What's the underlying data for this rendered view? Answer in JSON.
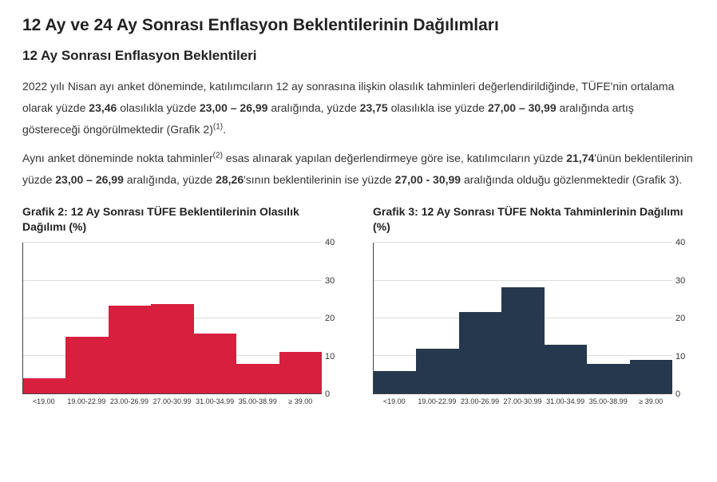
{
  "title_main": "12 Ay ve 24 Ay Sonrası Enflasyon Beklentilerinin Dağılımları",
  "title_section": "12 Ay Sonrası Enflasyon Beklentileri",
  "para1": {
    "t1": "2022 yılı Nisan ayı anket döneminde, katılımcıların 12 ay sonrasına ilişkin olasılık tahminleri değerlendirildiğinde, TÜFE'nin ortalama olarak yüzde ",
    "b1": "23,46",
    "t2": " olasılıkla yüzde ",
    "b2": "23,00 – 26,99",
    "t3": " aralığında, yüzde ",
    "b3": "23,75",
    "t4": " olasılıkla ise yüzde ",
    "b4": "27,00 – 30,99",
    "t5": " aralığında artış göstereceği öngörülmektedir (Grafik 2)",
    "fnote1": "(1)",
    "t6": "."
  },
  "para2": {
    "t1": "Aynı anket döneminde nokta tahminler",
    "fnote2": "(2)",
    "t2": " esas alınarak yapılan değerlendirmeye göre ise, katılımcıların yüzde ",
    "b1": "21,74",
    "t3": "'ünün beklentilerinin yüzde ",
    "b2": "23,00 – 26,99",
    "t4": " aralığında, yüzde ",
    "b3": "28,26",
    "t5": "'sının beklentilerinin ise yüzde ",
    "b4": "27,00 - 30,99",
    "t6": " aralığında olduğu gözlenmektedir (Grafik 3)."
  },
  "chart2": {
    "title": "Grafik 2: 12 Ay Sonrası TÜFE Beklentilerinin Olasılık Dağılımı (%)",
    "type": "bar",
    "bar_color": "#d81f3e",
    "background_color": "#ffffff",
    "grid_color": "#dddddd",
    "axis_color": "#444444",
    "ylim": [
      0,
      40
    ],
    "ytick_step": 10,
    "yticks": [
      0,
      10,
      20,
      30,
      40
    ],
    "categories": [
      "<19.00",
      "19.00-22.99",
      "23.00-26.99",
      "27.00-30.99",
      "31.00-34.99",
      "35.00-38.99",
      "≥ 39.00"
    ],
    "values": [
      4,
      15,
      23.46,
      23.75,
      16,
      8,
      11
    ]
  },
  "chart3": {
    "title": "Grafik 3: 12 Ay Sonrası TÜFE Nokta Tahminlerinin Dağılımı (%)",
    "type": "bar",
    "bar_color": "#25384d",
    "background_color": "#ffffff",
    "grid_color": "#dddddd",
    "axis_color": "#444444",
    "ylim": [
      0,
      40
    ],
    "ytick_step": 10,
    "yticks": [
      0,
      10,
      20,
      30,
      40
    ],
    "categories": [
      "<19.00",
      "19.00-22.99",
      "23.00-26.99",
      "27.00-30.99",
      "31.00-34.99",
      "35.00-38.99",
      "≥ 39.00"
    ],
    "values": [
      6,
      12,
      21.74,
      28.26,
      13,
      8,
      9
    ]
  }
}
